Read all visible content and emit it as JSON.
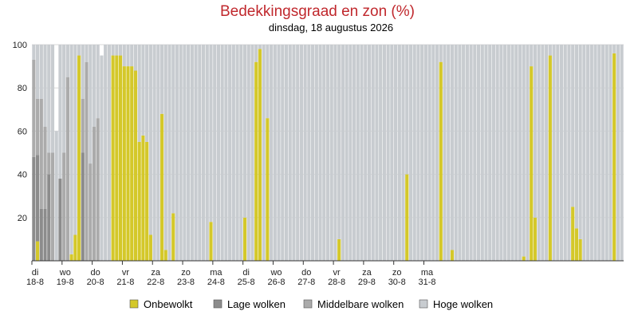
{
  "chart_data": {
    "type": "bar",
    "stacked": true,
    "title": "Bedekkingsgraad en zon (%)",
    "subtitle": "dinsdag, 18 augustus 2026",
    "ylim": [
      0,
      100
    ],
    "y_ticks": [
      20,
      40,
      60,
      80,
      100
    ],
    "grid": true,
    "legend_position": "bottom",
    "x_labels": [
      {
        "day": "di",
        "date": "18-8",
        "bar": 0
      },
      {
        "day": "wo",
        "date": "19-8",
        "bar": 8
      },
      {
        "day": "do",
        "date": "20-8",
        "bar": 16
      },
      {
        "day": "vr",
        "date": "21-8",
        "bar": 24
      },
      {
        "day": "za",
        "date": "22-8",
        "bar": 32
      },
      {
        "day": "zo",
        "date": "23-8",
        "bar": 40
      },
      {
        "day": "ma",
        "date": "24-8",
        "bar": 48
      },
      {
        "day": "di",
        "date": "25-8",
        "bar": 56
      },
      {
        "day": "wo",
        "date": "26-8",
        "bar": 64
      },
      {
        "day": "do",
        "date": "27-8",
        "bar": 72
      },
      {
        "day": "vr",
        "date": "28-8",
        "bar": 80
      },
      {
        "day": "za",
        "date": "29-8",
        "bar": 88
      },
      {
        "day": "zo",
        "date": "30-8",
        "bar": 96
      },
      {
        "day": "ma",
        "date": "31-8",
        "bar": 104
      }
    ],
    "series": [
      {
        "name": "Onbewolkt",
        "color": "#d4c82a",
        "values": [
          0,
          9,
          0,
          0,
          0,
          0,
          0,
          0,
          0,
          0,
          3,
          12,
          95,
          0,
          0,
          0,
          0,
          0,
          0,
          0,
          0,
          95,
          95,
          95,
          90,
          90,
          90,
          88,
          55,
          58,
          55,
          12,
          0,
          0,
          68,
          5,
          0,
          22,
          0,
          0,
          0,
          0,
          0,
          0,
          0,
          0,
          0,
          18,
          0,
          0,
          0,
          0,
          0,
          0,
          0,
          0,
          20,
          0,
          0,
          92,
          98,
          0,
          66,
          0,
          0,
          0,
          0,
          0,
          0,
          0,
          0,
          0,
          0,
          0,
          0,
          0,
          0,
          0,
          0,
          0,
          0,
          10,
          0,
          0,
          0,
          0,
          0,
          0,
          0,
          0,
          0,
          0,
          0,
          0,
          0,
          0,
          0,
          0,
          0,
          40,
          0,
          0,
          0,
          0,
          0,
          0,
          0,
          0,
          92,
          0,
          0,
          5,
          0,
          0,
          0,
          0,
          0,
          0,
          0,
          0,
          0,
          0,
          0,
          0,
          0,
          0,
          0,
          0,
          0,
          0,
          2,
          0,
          90,
          20,
          0,
          0,
          0,
          95,
          0,
          0,
          0,
          0,
          0,
          25,
          15,
          10,
          0,
          0,
          0,
          0,
          0,
          0,
          0,
          0,
          96,
          0,
          0
        ]
      },
      {
        "name": "Lage wolken",
        "color": "#8c8c8c",
        "values": [
          48,
          40,
          24,
          24,
          40,
          0,
          0,
          38,
          0,
          0,
          0,
          0,
          0,
          50,
          0,
          0,
          0,
          0,
          0,
          0,
          0,
          0,
          0,
          0,
          0,
          0,
          0,
          0,
          0,
          0,
          0,
          0,
          0,
          0,
          0,
          0,
          0,
          0,
          0,
          0,
          0,
          0,
          0,
          0,
          0,
          0,
          0,
          0,
          0,
          0,
          0,
          0,
          0,
          0,
          0,
          0,
          0,
          0,
          0,
          0,
          0,
          0,
          0,
          0,
          0,
          0,
          0,
          0,
          0,
          0,
          0,
          0,
          0,
          0,
          0,
          0,
          0,
          0,
          0,
          0,
          0,
          0,
          0,
          0,
          0,
          0,
          0,
          0,
          0,
          0,
          0,
          0,
          0,
          0,
          0,
          0,
          0,
          0,
          0,
          0,
          0,
          0,
          0,
          0,
          0,
          0,
          0,
          0,
          0,
          0,
          0,
          0,
          0,
          0,
          0,
          0,
          0,
          0,
          0,
          0,
          0,
          0,
          0,
          0,
          0,
          0,
          0,
          0,
          0,
          0,
          0,
          0,
          0,
          0,
          0,
          0,
          0,
          0,
          0,
          0,
          0,
          0,
          0,
          0,
          0,
          0,
          0,
          0,
          0,
          0,
          0,
          0,
          0,
          0,
          0,
          0,
          0,
          0,
          0,
          0,
          0,
          0
        ]
      },
      {
        "name": "Middelbare wolken",
        "color": "#ababab",
        "values": [
          45,
          26,
          51,
          38,
          10,
          50,
          0,
          0,
          50,
          85,
          0,
          0,
          0,
          25,
          92,
          45,
          62,
          66,
          0,
          0,
          0,
          0,
          0,
          0,
          0,
          0,
          0,
          0,
          0,
          0,
          0,
          0,
          0,
          0,
          0,
          0,
          0,
          0,
          0,
          0,
          0,
          0,
          0,
          0,
          0,
          0,
          0,
          0,
          0,
          0,
          0,
          0,
          0,
          0,
          0,
          0,
          0,
          0,
          0,
          0,
          0,
          0,
          0,
          0,
          0,
          0,
          0,
          0,
          0,
          0,
          0,
          0,
          0,
          0,
          0,
          0,
          0,
          0,
          0,
          0,
          0,
          0,
          0,
          0,
          0,
          0,
          0,
          0,
          0,
          0,
          0,
          0,
          0,
          0,
          0,
          0,
          0,
          0,
          0,
          0,
          0,
          0,
          0,
          0,
          0,
          0,
          0,
          0,
          0,
          0,
          0,
          0,
          0,
          0,
          0,
          0,
          0,
          0,
          0,
          0,
          0,
          0,
          0,
          0,
          0,
          0,
          0,
          0,
          0,
          0,
          0,
          0,
          0,
          0,
          0,
          0,
          0,
          0,
          0,
          0,
          0,
          0,
          0,
          0,
          0,
          0,
          0,
          0,
          0,
          0,
          0,
          0,
          0,
          0,
          0,
          0,
          0,
          0,
          0,
          0,
          0,
          0
        ]
      },
      {
        "name": "Hoge wolken",
        "color": "#c8ccd0",
        "values": [
          7,
          25,
          25,
          38,
          50,
          50,
          60,
          62,
          50,
          15,
          97,
          88,
          5,
          25,
          8,
          55,
          38,
          34,
          95,
          100,
          100,
          5,
          5,
          5,
          10,
          10,
          10,
          12,
          45,
          42,
          45,
          88,
          100,
          100,
          32,
          95,
          100,
          78,
          100,
          100,
          100,
          100,
          100,
          100,
          100,
          100,
          100,
          82,
          100,
          100,
          100,
          100,
          100,
          100,
          100,
          100,
          80,
          100,
          100,
          8,
          2,
          100,
          34,
          100,
          100,
          100,
          100,
          100,
          100,
          100,
          100,
          100,
          100,
          100,
          100,
          100,
          100,
          100,
          100,
          100,
          100,
          90,
          100,
          100,
          100,
          100,
          100,
          100,
          100,
          100,
          100,
          100,
          100,
          100,
          100,
          100,
          100,
          100,
          100,
          60,
          100,
          100,
          100,
          100,
          100,
          100,
          100,
          100,
          8,
          100,
          100,
          95,
          100,
          100,
          100,
          100,
          100,
          100,
          100,
          100,
          100,
          100,
          100,
          100,
          100,
          100,
          100,
          100,
          100,
          100,
          98,
          100,
          10,
          80,
          100,
          100,
          100,
          5,
          100,
          100,
          100,
          100,
          100,
          75,
          85,
          90,
          100,
          100,
          100,
          100,
          100,
          100,
          100,
          100,
          4,
          100,
          100
        ]
      }
    ]
  }
}
